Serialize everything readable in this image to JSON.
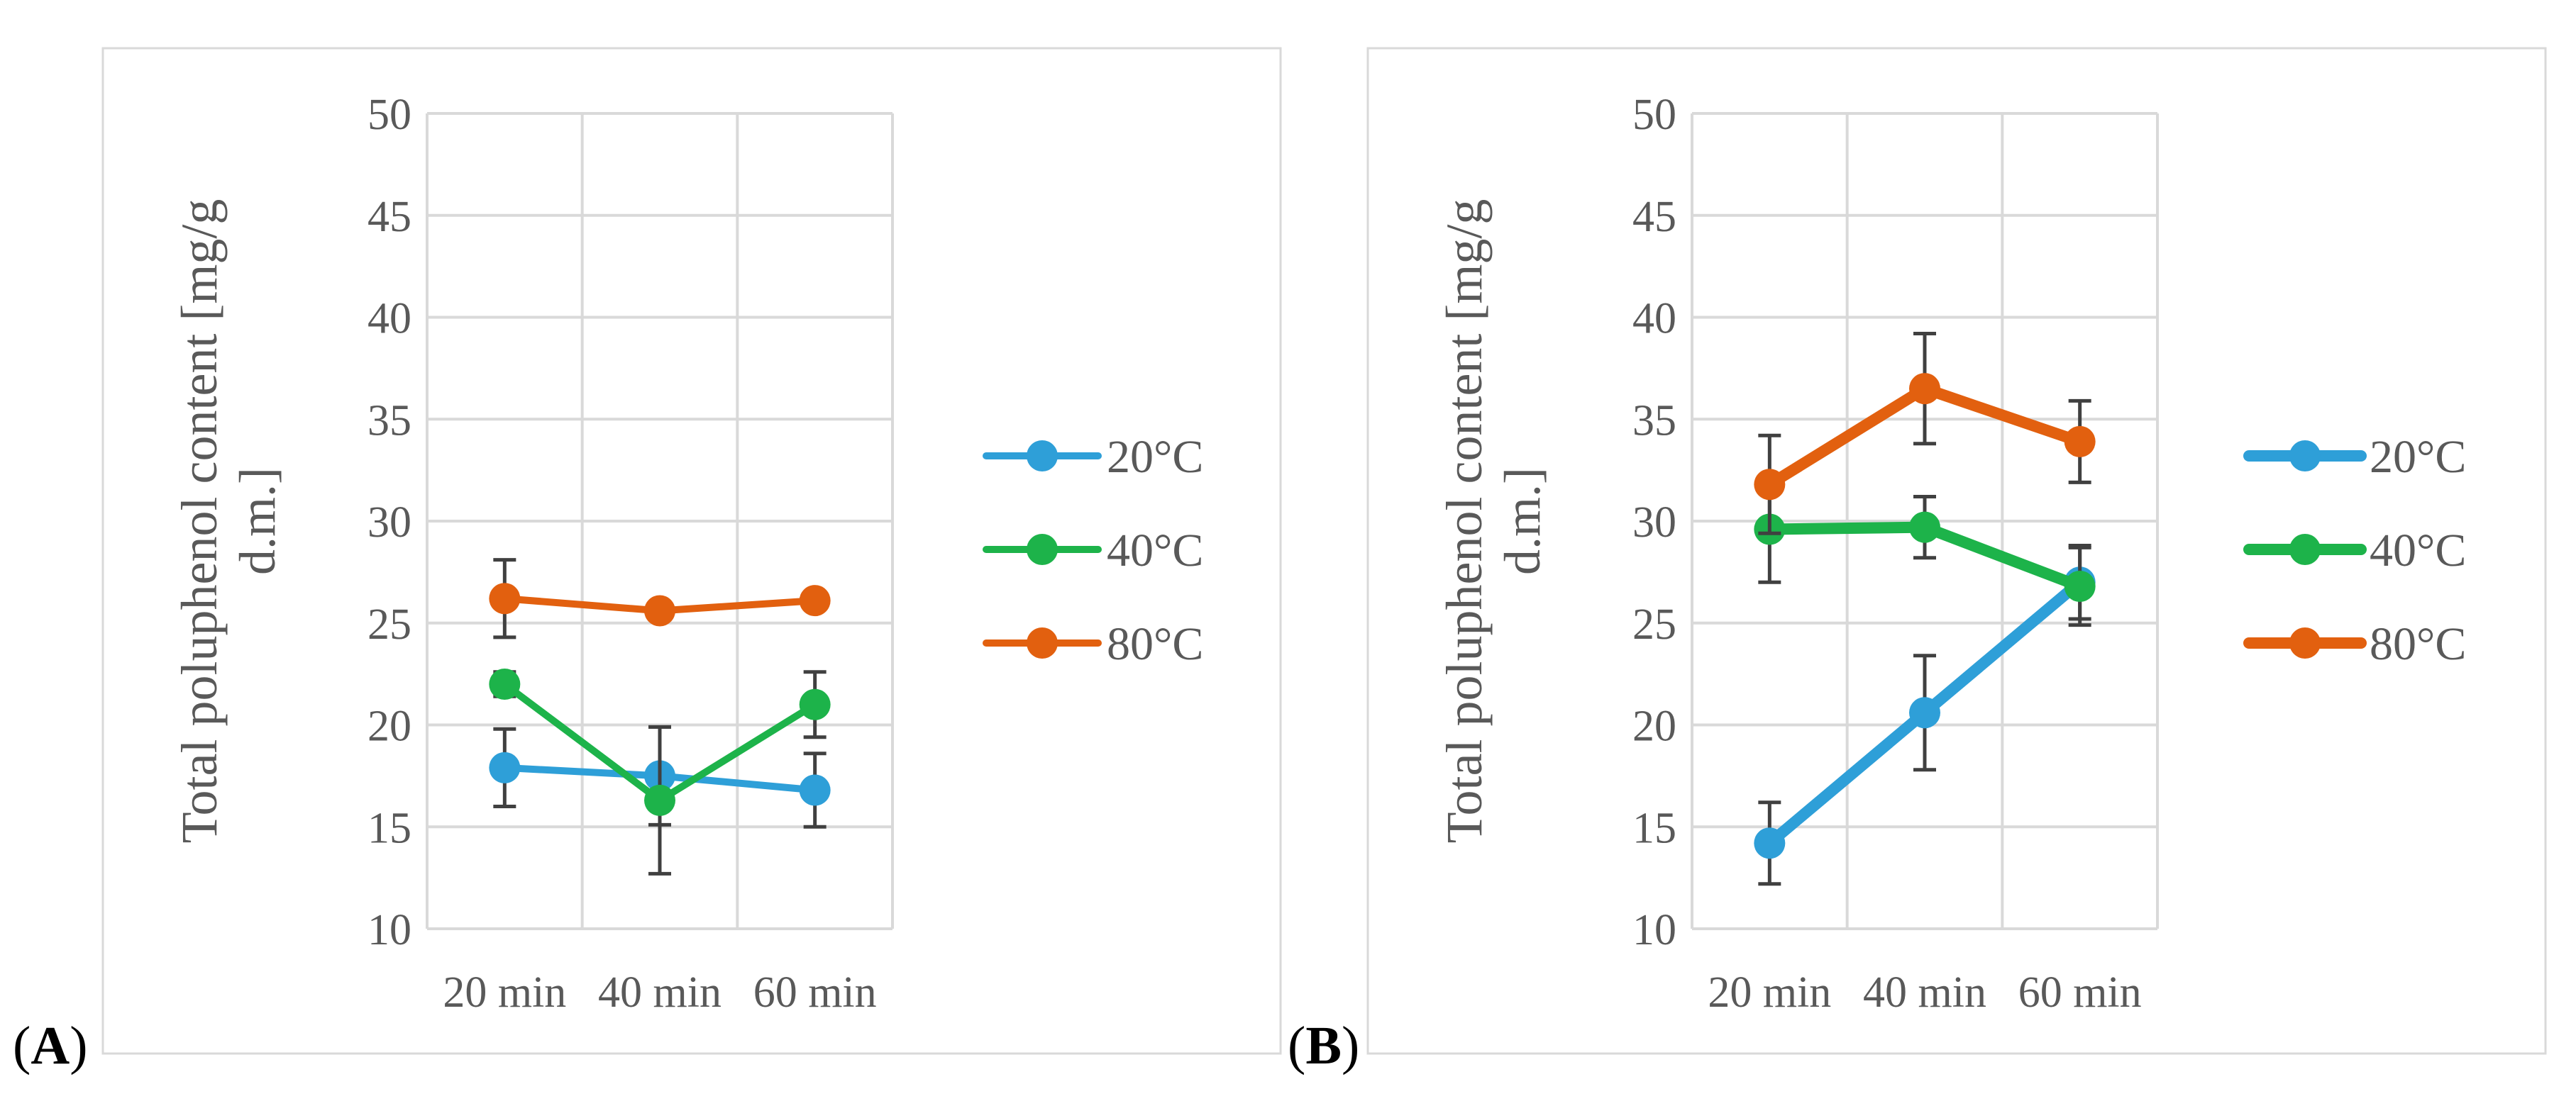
{
  "panel_labels": [
    "(A)",
    "(B)"
  ],
  "colors": {
    "20C": "#2e9fd8",
    "40C": "#1db34a",
    "80C": "#e2600f",
    "grid": "#d9d9d9",
    "axis_text": "#595959",
    "error_bar": "#404040",
    "frame": "#d9d9d9"
  },
  "chart_data": [
    {
      "type": "line",
      "panel": "(A)",
      "title": "",
      "xlabel": "",
      "ylabel": "Total poluphenol content [mg/g d.m.]",
      "ylabel_lines": [
        "Total poluphenol content [mg/g",
        "d.m.]"
      ],
      "categories": [
        "20 min",
        "40 min",
        "60 min"
      ],
      "ylim": [
        10,
        50
      ],
      "yticks": [
        "10",
        "15",
        "20",
        "25",
        "30",
        "35",
        "40",
        "45",
        "50"
      ],
      "grid": true,
      "legend": "right",
      "series": [
        {
          "name": "20°C",
          "color_key": "20C",
          "values": [
            17.9,
            17.5,
            16.8
          ],
          "errors": [
            1.9,
            2.4,
            1.8
          ]
        },
        {
          "name": "40°C",
          "color_key": "40C",
          "values": [
            22.0,
            16.3,
            21.0
          ],
          "errors": [
            0.6,
            3.6,
            1.6
          ]
        },
        {
          "name": "80°C",
          "color_key": "80C",
          "values": [
            26.2,
            25.6,
            26.1
          ],
          "errors": [
            1.9,
            0.2,
            0.3
          ]
        }
      ]
    },
    {
      "type": "line",
      "panel": "(B)",
      "title": "",
      "xlabel": "",
      "ylabel": "Total poluphenol content [mg/g d.m.]",
      "ylabel_lines": [
        "Total poluphenol content [mg/g",
        "d.m.]"
      ],
      "categories": [
        "20 min",
        "40 min",
        "60 min"
      ],
      "ylim": [
        10,
        50
      ],
      "yticks": [
        "10",
        "15",
        "20",
        "25",
        "30",
        "35",
        "40",
        "45",
        "50"
      ],
      "grid": true,
      "legend": "right",
      "series": [
        {
          "name": "20°C",
          "color_key": "20C",
          "values": [
            14.2,
            20.6,
            27.0
          ],
          "errors": [
            2.0,
            2.8,
            1.8
          ]
        },
        {
          "name": "40°C",
          "color_key": "40C",
          "values": [
            29.6,
            29.7,
            26.8
          ],
          "errors": [
            2.6,
            1.5,
            1.9
          ]
        },
        {
          "name": "80°C",
          "color_key": "80C",
          "values": [
            31.8,
            36.5,
            33.9
          ],
          "errors": [
            2.4,
            2.7,
            2.0
          ]
        }
      ]
    }
  ]
}
